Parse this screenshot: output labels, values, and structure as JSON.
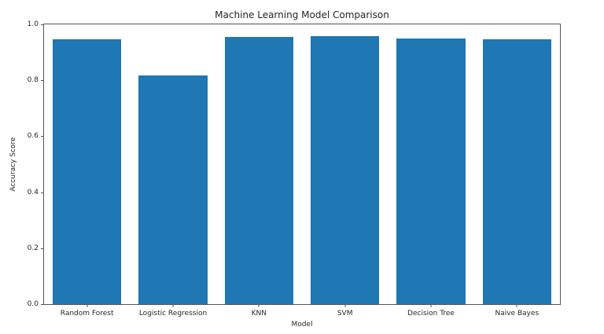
{
  "chart_data": {
    "type": "bar",
    "title": "Machine Learning Model Comparison",
    "xlabel": "Model",
    "ylabel": "Accuracy Score",
    "categories": [
      "Random Forest",
      "Logistic Regression",
      "KNN",
      "SVM",
      "Decision Tree",
      "Naive Bayes"
    ],
    "values": [
      0.947,
      0.818,
      0.955,
      0.957,
      0.949,
      0.947
    ],
    "ylim": [
      0.0,
      1.0
    ],
    "yticks": [
      0.0,
      0.2,
      0.4,
      0.6,
      0.8,
      1.0
    ],
    "ytick_labels": [
      "0.0",
      "0.2",
      "0.4",
      "0.6",
      "0.8",
      "1.0"
    ],
    "bar_color": "#1f77b4",
    "axis_color": "#555555",
    "grid": false,
    "legend": null
  }
}
